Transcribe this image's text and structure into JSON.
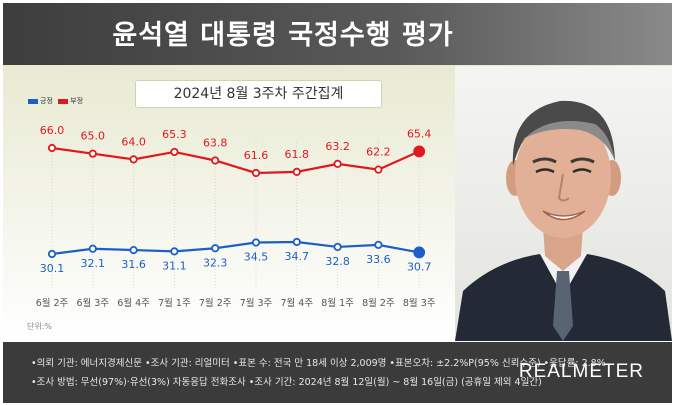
{
  "header": {
    "title": "윤석열 대통령 국정수행 평가"
  },
  "chart_data": {
    "type": "line",
    "subtitle": "2024년 8월 3주차 주간집계",
    "categories": [
      "6월 2주",
      "6월 3주",
      "6월 4주",
      "7월 1주",
      "7월 2주",
      "7월 3주",
      "7월 4주",
      "8월 1주",
      "8월 2주",
      "8월 3주"
    ],
    "series": [
      {
        "name": "부정",
        "color": "#e0191e",
        "values": [
          66.0,
          65.0,
          64.0,
          65.3,
          63.8,
          61.6,
          61.8,
          63.2,
          62.2,
          65.4
        ]
      },
      {
        "name": "긍정",
        "color": "#1c5fc8",
        "values": [
          30.1,
          32.1,
          31.6,
          31.1,
          32.3,
          34.5,
          34.7,
          32.8,
          33.6,
          30.7
        ]
      }
    ],
    "legend": [
      "긍정",
      "부정"
    ],
    "legend_position": "top-left",
    "unit": "단위:%"
  },
  "footer": {
    "line1": "•의뢰 기관: 에너지경제신문 •조사 기관: 리얼미터 •표본 수: 전국 만 18세 이상 2,009명 •표본오차: ±2.2%P(95% 신뢰수준) •응답률: 2.8%",
    "line2": "•조사 방법: 무선(97%)·유선(3%) 자동응답 전화조사 •조사 기간: 2024년 8월 12일(월) ~ 8월 16일(금) (공휴일 제외 4일간)",
    "brand": "REALMETER"
  }
}
